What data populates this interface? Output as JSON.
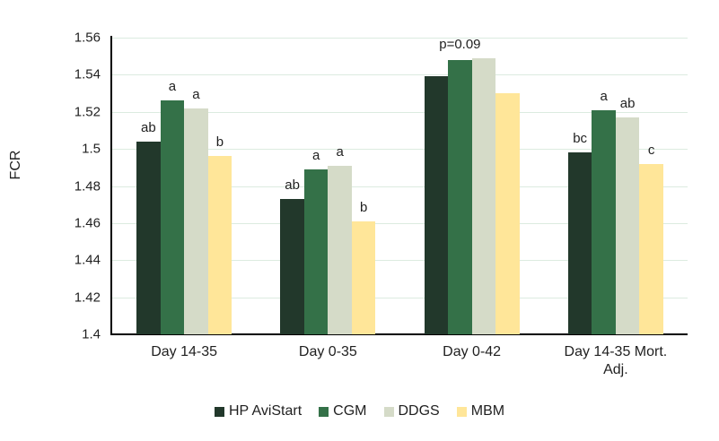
{
  "chart_data": {
    "type": "bar",
    "title": "",
    "xlabel": "",
    "ylabel": "FCR",
    "ylim": [
      1.4,
      1.56
    ],
    "ytick_step": 0.02,
    "yticks": [
      "1.4",
      "1.42",
      "1.44",
      "1.46",
      "1.48",
      "1.5",
      "1.52",
      "1.54",
      "1.56"
    ],
    "categories": [
      "Day 14-35",
      "Day 0-35",
      "Day 0-42",
      "Day 14-35 Mort. Adj."
    ],
    "series": [
      {
        "name": "HP AviStart",
        "color": "#22382b",
        "values": [
          1.504,
          1.473,
          1.539,
          1.498
        ],
        "sig_labels": [
          "ab",
          "ab",
          "",
          "bc"
        ]
      },
      {
        "name": "CGM",
        "color": "#347148",
        "values": [
          1.526,
          1.489,
          1.548,
          1.521
        ],
        "sig_labels": [
          "a",
          "a",
          "",
          "a"
        ]
      },
      {
        "name": "DDGS",
        "color": "#d5dbc8",
        "values": [
          1.522,
          1.491,
          1.549,
          1.517
        ],
        "sig_labels": [
          "a",
          "a",
          "",
          "ab"
        ]
      },
      {
        "name": "MBM",
        "color": "#ffe699",
        "values": [
          1.496,
          1.461,
          1.53,
          1.492
        ],
        "sig_labels": [
          "b",
          "b",
          "",
          "c"
        ]
      }
    ],
    "group_annotations": [
      "",
      "",
      "p=0.09",
      ""
    ],
    "legend_position": "bottom",
    "grid": true,
    "colors": {
      "gridline": "#dcebe0",
      "axis": "#000000",
      "text": "#1f1f1f",
      "background": "#ffffff"
    }
  }
}
